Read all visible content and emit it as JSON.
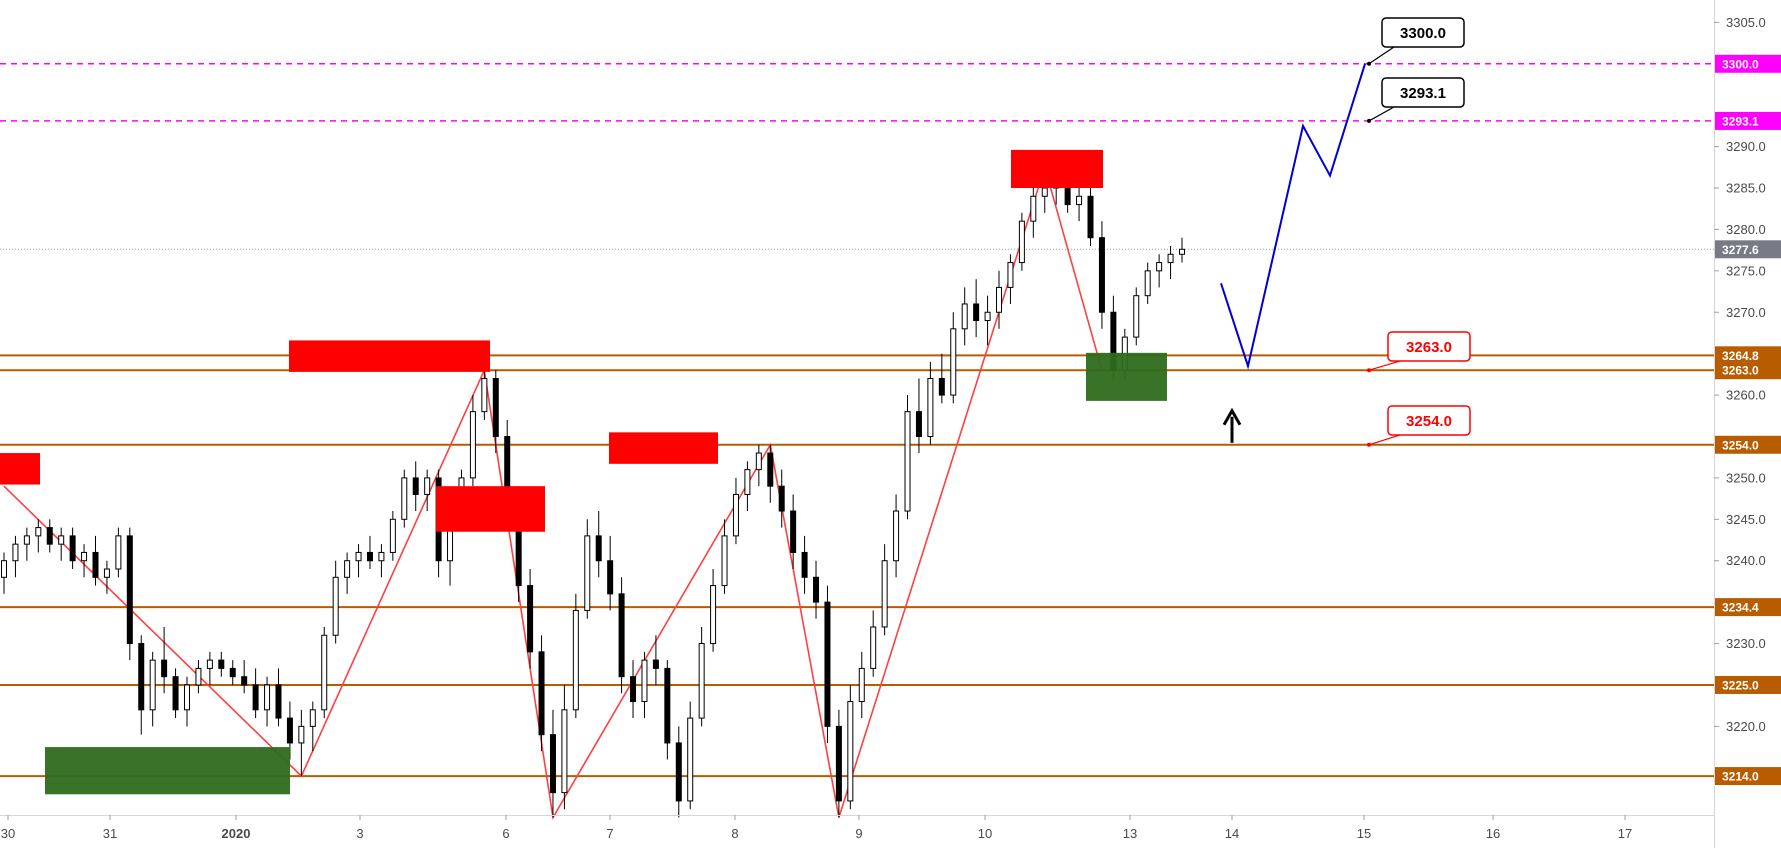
{
  "chart_data": {
    "type": "candlestick",
    "y_axis": {
      "range": [
        3209.3,
        3307.7
      ],
      "ticks": [
        3220,
        3230,
        3240,
        3245,
        3250,
        3260,
        3270,
        3275,
        3280,
        3285,
        3290,
        3305
      ],
      "tick_labels": [
        "3220.0",
        "3230.0",
        "3240.0",
        "3245.0",
        "3250.0",
        "3260.0",
        "3270.0",
        "3275.0",
        "3280.0",
        "3285.0",
        "3290.0",
        "3305.0"
      ]
    },
    "x_axis": {
      "labels": [
        "30",
        "31",
        "2020",
        "3",
        "6",
        "7",
        "8",
        "9",
        "10",
        "13",
        "14",
        "15",
        "16",
        "17"
      ]
    },
    "last_price": {
      "value": 3277.6,
      "label": "3277.6",
      "color": "#787b86"
    },
    "levels": [
      {
        "value": 3300.0,
        "label": "3300.0",
        "color": "#ff00ff",
        "style": "dashed"
      },
      {
        "value": 3293.1,
        "label": "3293.1",
        "color": "#ff00ff",
        "style": "dashed"
      },
      {
        "value": 3264.8,
        "label": "3264.8",
        "color": "#b85c00",
        "style": "solid"
      },
      {
        "value": 3263.0,
        "label": "3263.0",
        "color": "#b85c00",
        "style": "solid"
      },
      {
        "value": 3254.0,
        "label": "3254.0",
        "color": "#b85c00",
        "style": "solid"
      },
      {
        "value": 3234.4,
        "label": "3234.4",
        "color": "#b85c00",
        "style": "solid"
      },
      {
        "value": 3225.0,
        "label": "3225.0",
        "color": "#b85c00",
        "style": "solid"
      },
      {
        "value": 3214.0,
        "label": "3214.0",
        "color": "#b85c00",
        "style": "solid"
      }
    ],
    "callouts": [
      {
        "label": "3300.0",
        "value": 3300.0,
        "color": "#000000"
      },
      {
        "label": "3293.1",
        "value": 3293.1,
        "color": "#000000"
      },
      {
        "label": "3263.0",
        "value": 3263.0,
        "color": "#ff0000"
      },
      {
        "label": "3254.0",
        "value": 3254.0,
        "color": "#ff0000"
      }
    ],
    "supply_zones_color": "#ff0000",
    "demand_zones_color": "#2e6b1c",
    "zigzag_color": "#ff4040",
    "projection_color": "#0000d4",
    "projection": [
      3273.5,
      3263.5,
      3292.5,
      3286.5,
      3300.0
    ],
    "candles": [
      [
        3238,
        3241,
        3236,
        3240
      ],
      [
        3240,
        3243,
        3238,
        3242
      ],
      [
        3242,
        3244,
        3240,
        3243
      ],
      [
        3243,
        3245,
        3241,
        3244
      ],
      [
        3244,
        3245,
        3241,
        3242
      ],
      [
        3242,
        3244,
        3240,
        3243
      ],
      [
        3243,
        3244,
        3239,
        3240
      ],
      [
        3240,
        3242,
        3238,
        3241
      ],
      [
        3241,
        3243,
        3237,
        3238
      ],
      [
        3238,
        3240,
        3236,
        3239
      ],
      [
        3239,
        3244,
        3238,
        3243
      ],
      [
        3243,
        3244,
        3228,
        3230
      ],
      [
        3230,
        3231,
        3219,
        3222
      ],
      [
        3222,
        3229,
        3220,
        3228
      ],
      [
        3228,
        3232,
        3224,
        3226
      ],
      [
        3226,
        3227,
        3221,
        3222
      ],
      [
        3222,
        3226,
        3220,
        3225
      ],
      [
        3225,
        3228,
        3224,
        3227
      ],
      [
        3227,
        3229,
        3225,
        3228
      ],
      [
        3228,
        3229,
        3226,
        3227
      ],
      [
        3227,
        3228,
        3225,
        3226
      ],
      [
        3226,
        3228,
        3224,
        3225
      ],
      [
        3225,
        3227,
        3221,
        3222
      ],
      [
        3222,
        3226,
        3220,
        3225
      ],
      [
        3225,
        3227,
        3220,
        3221
      ],
      [
        3221,
        3223,
        3216,
        3218
      ],
      [
        3218,
        3222,
        3214,
        3220
      ],
      [
        3220,
        3223,
        3217,
        3222
      ],
      [
        3222,
        3232,
        3221,
        3231
      ],
      [
        3231,
        3240,
        3230,
        3238
      ],
      [
        3238,
        3241,
        3236,
        3240
      ],
      [
        3240,
        3242,
        3238,
        3241
      ],
      [
        3241,
        3243,
        3239,
        3240
      ],
      [
        3240,
        3242,
        3238,
        3241
      ],
      [
        3241,
        3246,
        3240,
        3245
      ],
      [
        3245,
        3251,
        3244,
        3250
      ],
      [
        3250,
        3252,
        3246,
        3248
      ],
      [
        3248,
        3251,
        3246,
        3250
      ],
      [
        3250,
        3251,
        3238,
        3240
      ],
      [
        3240,
        3246,
        3237,
        3245
      ],
      [
        3245,
        3251,
        3244,
        3250
      ],
      [
        3250,
        3260,
        3249,
        3258
      ],
      [
        3258,
        3263,
        3257,
        3262
      ],
      [
        3262,
        3263,
        3253,
        3255
      ],
      [
        3255,
        3257,
        3245,
        3247
      ],
      [
        3247,
        3249,
        3235,
        3237
      ],
      [
        3237,
        3239,
        3227,
        3229
      ],
      [
        3229,
        3231,
        3217,
        3219
      ],
      [
        3219,
        3222,
        3209,
        3212
      ],
      [
        3212,
        3225,
        3210,
        3222
      ],
      [
        3222,
        3236,
        3221,
        3234
      ],
      [
        3234,
        3245,
        3233,
        3243
      ],
      [
        3243,
        3246,
        3238,
        3240
      ],
      [
        3240,
        3243,
        3234,
        3236
      ],
      [
        3236,
        3238,
        3224,
        3226
      ],
      [
        3226,
        3228,
        3221,
        3223
      ],
      [
        3223,
        3229,
        3221,
        3228
      ],
      [
        3228,
        3231,
        3225,
        3227
      ],
      [
        3227,
        3228,
        3216,
        3218
      ],
      [
        3218,
        3220,
        3209,
        3211
      ],
      [
        3211,
        3223,
        3210,
        3221
      ],
      [
        3221,
        3232,
        3220,
        3230
      ],
      [
        3230,
        3239,
        3229,
        3237
      ],
      [
        3237,
        3245,
        3236,
        3243
      ],
      [
        3243,
        3250,
        3242,
        3248
      ],
      [
        3248,
        3252,
        3246,
        3251
      ],
      [
        3251,
        3254,
        3249,
        3253
      ],
      [
        3253,
        3254,
        3247,
        3249
      ],
      [
        3249,
        3251,
        3244,
        3246
      ],
      [
        3246,
        3248,
        3239,
        3241
      ],
      [
        3241,
        3243,
        3236,
        3238
      ],
      [
        3238,
        3240,
        3233,
        3235
      ],
      [
        3235,
        3237,
        3218,
        3220
      ],
      [
        3220,
        3222,
        3209,
        3211
      ],
      [
        3211,
        3225,
        3210,
        3223
      ],
      [
        3223,
        3229,
        3221,
        3227
      ],
      [
        3227,
        3234,
        3226,
        3232
      ],
      [
        3232,
        3242,
        3231,
        3240
      ],
      [
        3240,
        3248,
        3238,
        3246
      ],
      [
        3246,
        3260,
        3245,
        3258
      ],
      [
        3258,
        3262,
        3253,
        3255
      ],
      [
        3255,
        3264,
        3254,
        3262
      ],
      [
        3262,
        3265,
        3259,
        3260
      ],
      [
        3260,
        3270,
        3259,
        3268
      ],
      [
        3268,
        3273,
        3266,
        3271
      ],
      [
        3271,
        3274,
        3267,
        3269
      ],
      [
        3269,
        3272,
        3266,
        3270
      ],
      [
        3270,
        3275,
        3268,
        3273
      ],
      [
        3273,
        3277,
        3271,
        3276
      ],
      [
        3276,
        3282,
        3275,
        3281
      ],
      [
        3281,
        3285,
        3279,
        3284
      ],
      [
        3284,
        3286,
        3282,
        3285
      ],
      [
        3285,
        3287,
        3283,
        3286
      ],
      [
        3286,
        3287,
        3282,
        3283
      ],
      [
        3283,
        3286,
        3281,
        3284
      ],
      [
        3284,
        3286,
        3278,
        3279
      ],
      [
        3279,
        3281,
        3268,
        3270
      ],
      [
        3270,
        3272,
        3262,
        3263
      ],
      [
        3263,
        3268,
        3262,
        3267
      ],
      [
        3267,
        3273,
        3266,
        3272
      ],
      [
        3272,
        3276,
        3271,
        3275
      ],
      [
        3275,
        3277,
        3273,
        3276
      ],
      [
        3276,
        3278,
        3274,
        3277
      ],
      [
        3277,
        3279,
        3276,
        3277.6
      ]
    ]
  }
}
